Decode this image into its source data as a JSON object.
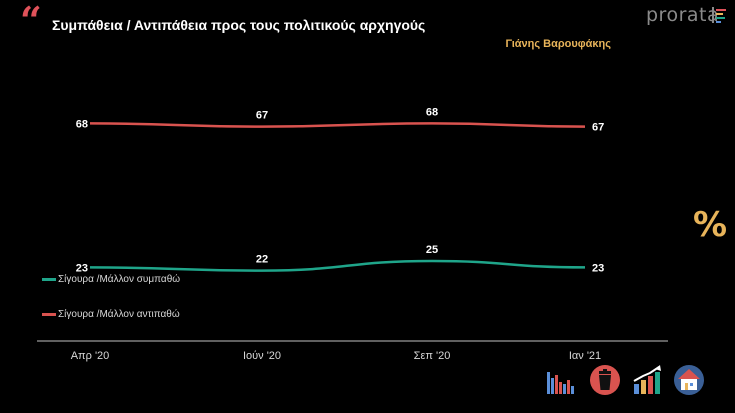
{
  "header": {
    "quote_mark": "“",
    "title": "Συμπάθεια / Αντιπάθεια προς τους πολιτικούς αρχηγούς",
    "brand": "prorata",
    "person": "Γιάνης Βαρουφάκης"
  },
  "side": {
    "percent_symbol": "%"
  },
  "colors": {
    "background": "#000000",
    "sympathy": "#1fa58a",
    "antipathy": "#d9534f",
    "accent": "#e8b45a",
    "quote": "#e0525a"
  },
  "chart_data": {
    "type": "line",
    "categories": [
      "Απρ '20",
      "Ιούν '20",
      "Σεπ '20",
      "Ιαν '21"
    ],
    "series": [
      {
        "name": "Σίγουρα /Μάλλον συμπαθώ",
        "values": [
          23,
          22,
          25,
          23
        ],
        "color": "#1fa58a"
      },
      {
        "name": "Σίγουρα /Μάλλον αντιπαθώ",
        "values": [
          68,
          67,
          68,
          67
        ],
        "color": "#d9534f"
      }
    ],
    "ylim": [
      0,
      100
    ],
    "grid": false,
    "legend": "left"
  },
  "bottom_icons": [
    "bar-chart-icon",
    "trash-bin-icon",
    "trend-chart-icon",
    "house-icon"
  ]
}
